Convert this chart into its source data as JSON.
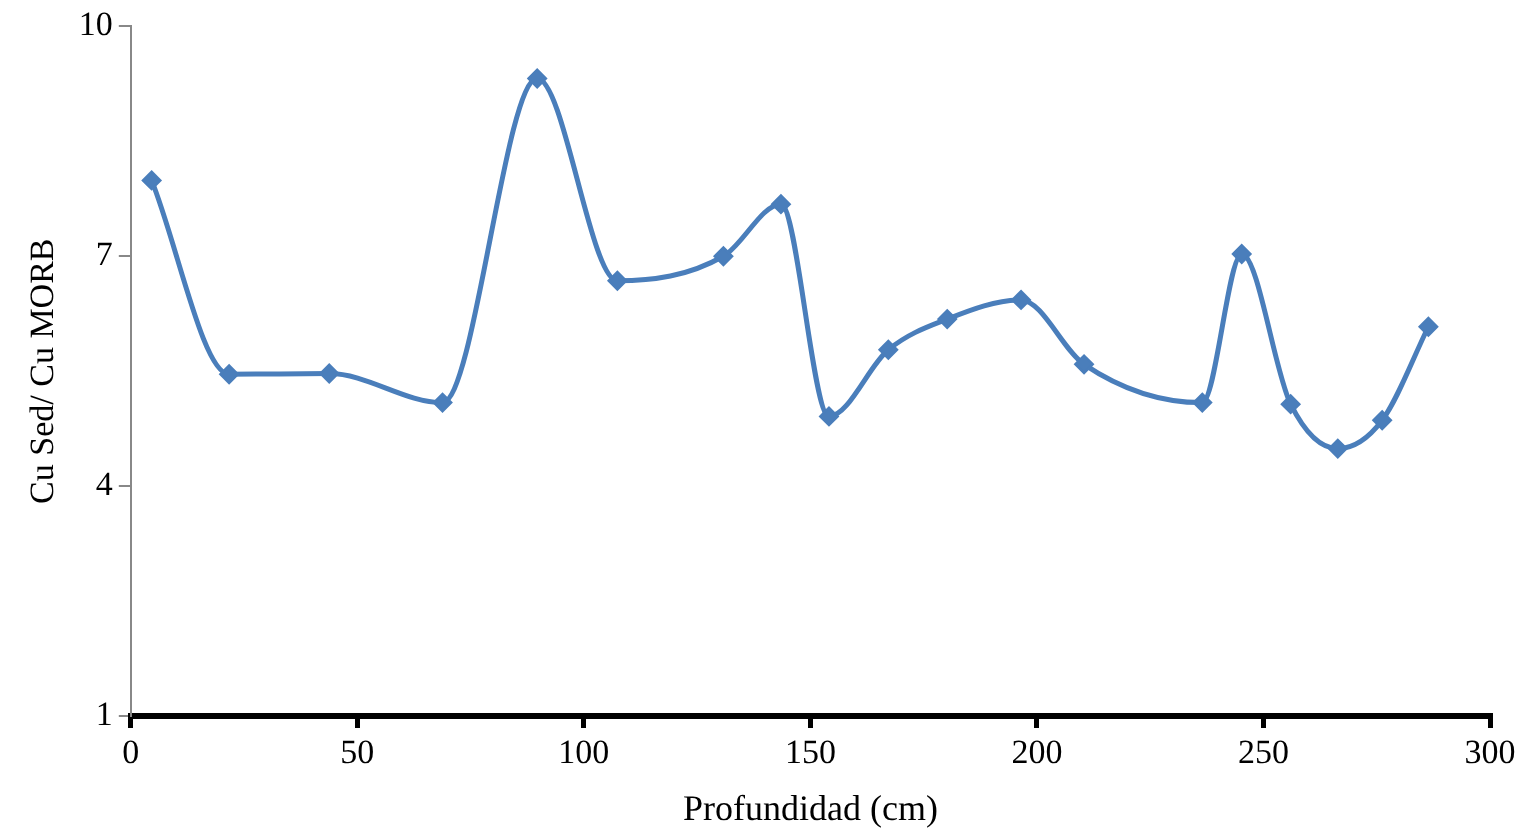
{
  "chart_data": {
    "type": "line",
    "xlabel": "Profundidad (cm)",
    "ylabel": "Cu Sed/ Cu MORB",
    "x": [
      4.6,
      21.7,
      43.8,
      68.8,
      89.7,
      107.4,
      130.8,
      143.5,
      154.1,
      167.2,
      180.2,
      196.5,
      210.4,
      236.5,
      245.2,
      256.0,
      266.4,
      276.2,
      286.4
    ],
    "series": [
      {
        "color": "#4a7ebb",
        "values": [
          7.99,
          5.46,
          5.47,
          5.09,
          9.32,
          6.68,
          7.0,
          7.68,
          4.91,
          5.78,
          6.18,
          6.43,
          5.59,
          5.09,
          7.03,
          5.07,
          4.49,
          4.86,
          6.08
        ]
      }
    ],
    "xlim": [
      0,
      300
    ],
    "xticks": [
      0,
      50,
      100,
      150,
      200,
      250,
      300
    ],
    "ylim": [
      1,
      10
    ],
    "yticks": [
      1,
      4,
      7,
      10
    ],
    "grid": false,
    "legend": false,
    "marker": "diamond",
    "line_style": "solid"
  }
}
